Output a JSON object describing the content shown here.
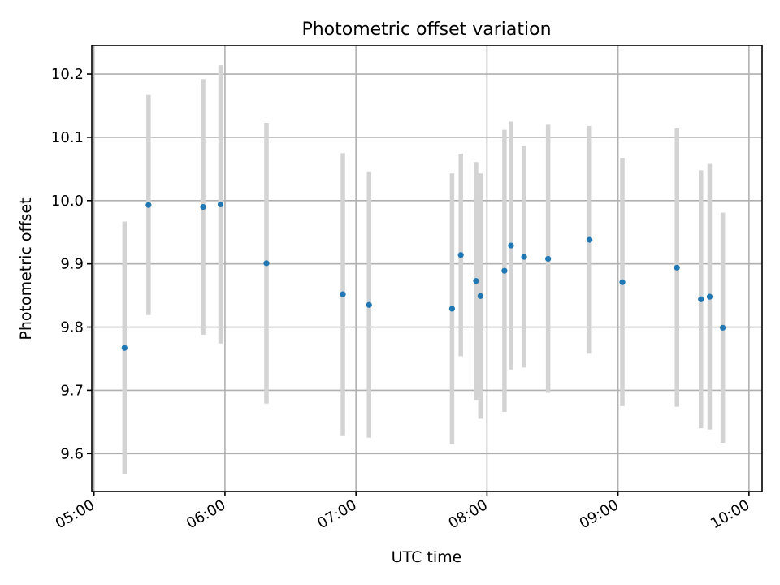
{
  "chart_data": {
    "type": "scatter",
    "title": "Photometric offset variation",
    "xlabel": "UTC time",
    "ylabel": "Photometric offset",
    "x_unit": "time of day (HH:MM)",
    "xlim": [
      "04:59",
      "10:06"
    ],
    "ylim": [
      9.54,
      10.245
    ],
    "x_ticks": [
      "05:00",
      "06:00",
      "07:00",
      "08:00",
      "09:00",
      "10:00"
    ],
    "y_ticks": [
      9.6,
      9.7,
      9.8,
      9.9,
      10.0,
      10.1,
      10.2
    ],
    "y_tick_labels": [
      "9.6",
      "9.7",
      "9.8",
      "9.9",
      "10.0",
      "10.1",
      "10.2"
    ],
    "grid": true,
    "x_tick_label_rotation": "rotated",
    "marker_color": "#1f77b4",
    "errorbar_color": "#d3d3d3",
    "series": [
      {
        "points": [
          {
            "x": "05:14",
            "y": 9.767,
            "err": 0.2
          },
          {
            "x": "05:25",
            "y": 9.993,
            "err": 0.174
          },
          {
            "x": "05:50",
            "y": 9.99,
            "err": 0.202
          },
          {
            "x": "05:58",
            "y": 9.994,
            "err": 0.22
          },
          {
            "x": "06:19",
            "y": 9.901,
            "err": 0.222
          },
          {
            "x": "06:54",
            "y": 9.852,
            "err": 0.223
          },
          {
            "x": "07:06",
            "y": 9.835,
            "err": 0.21
          },
          {
            "x": "07:44",
            "y": 9.829,
            "err": 0.214
          },
          {
            "x": "07:48",
            "y": 9.914,
            "err": 0.16
          },
          {
            "x": "07:55",
            "y": 9.873,
            "err": 0.188
          },
          {
            "x": "07:57",
            "y": 9.849,
            "err": 0.194
          },
          {
            "x": "08:08",
            "y": 9.889,
            "err": 0.223
          },
          {
            "x": "08:11",
            "y": 9.929,
            "err": 0.196
          },
          {
            "x": "08:17",
            "y": 9.911,
            "err": 0.175
          },
          {
            "x": "08:28",
            "y": 9.908,
            "err": 0.212
          },
          {
            "x": "08:47",
            "y": 9.938,
            "err": 0.18
          },
          {
            "x": "09:02",
            "y": 9.871,
            "err": 0.196
          },
          {
            "x": "09:27",
            "y": 9.894,
            "err": 0.22
          },
          {
            "x": "09:38",
            "y": 9.844,
            "err": 0.204
          },
          {
            "x": "09:42",
            "y": 9.848,
            "err": 0.21
          },
          {
            "x": "09:48",
            "y": 9.799,
            "err": 0.182
          }
        ]
      }
    ]
  }
}
